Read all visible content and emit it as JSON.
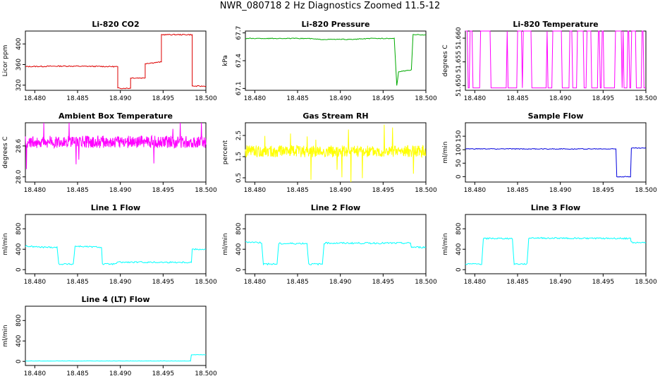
{
  "figure_title": "NWR_080718  2 Hz Diagnostics Zoomed 11.5-12",
  "chart_data": [
    {
      "id": "co2",
      "type": "line",
      "title": "Li-820 CO2",
      "ylabel": "Licor ppm",
      "xlim": [
        18.4789,
        18.5
      ],
      "ylim": [
        310,
        425
      ],
      "yticks": [
        320,
        360,
        400
      ],
      "xticks": [
        18.48,
        18.485,
        18.49,
        18.495,
        18.5
      ],
      "xticklabels": [
        "18.480",
        "18.485",
        "18.490",
        "18.495",
        "18.500"
      ],
      "color": "#dd0000",
      "noise": 1,
      "series": [
        {
          "x": 18.4789,
          "y": 356
        },
        {
          "x": 18.4835,
          "y": 357
        },
        {
          "x": 18.4897,
          "y": 356
        },
        {
          "x": 18.4897,
          "y": 314
        },
        {
          "x": 18.4912,
          "y": 314
        },
        {
          "x": 18.4912,
          "y": 334
        },
        {
          "x": 18.4929,
          "y": 334
        },
        {
          "x": 18.4929,
          "y": 362
        },
        {
          "x": 18.4948,
          "y": 365
        },
        {
          "x": 18.4948,
          "y": 418
        },
        {
          "x": 18.4984,
          "y": 418
        },
        {
          "x": 18.4984,
          "y": 318
        },
        {
          "x": 18.5,
          "y": 318
        }
      ]
    },
    {
      "id": "pressure",
      "type": "line",
      "title": "Li-820 Pressure",
      "ylabel": "kPa",
      "xlim": [
        18.4789,
        18.5
      ],
      "ylim": [
        67.08,
        67.72
      ],
      "yticks": [
        67.1,
        67.4,
        67.7
      ],
      "yticklabels": [
        "67.1",
        "67.4",
        "67.7"
      ],
      "xticks": [
        18.48,
        18.485,
        18.49,
        18.495,
        18.5
      ],
      "xticklabels": [
        "18.480",
        "18.485",
        "18.490",
        "18.495",
        "18.500"
      ],
      "color": "#00aa00",
      "noise": 0.004,
      "series": [
        {
          "x": 18.4789,
          "y": 67.64
        },
        {
          "x": 18.4862,
          "y": 67.64
        },
        {
          "x": 18.4875,
          "y": 67.63
        },
        {
          "x": 18.4915,
          "y": 67.63
        },
        {
          "x": 18.4935,
          "y": 67.64
        },
        {
          "x": 18.4963,
          "y": 67.64
        },
        {
          "x": 18.4966,
          "y": 67.13
        },
        {
          "x": 18.4968,
          "y": 67.28
        },
        {
          "x": 18.4983,
          "y": 67.3
        },
        {
          "x": 18.4985,
          "y": 67.68
        },
        {
          "x": 18.5,
          "y": 67.68
        }
      ]
    },
    {
      "id": "temperature",
      "type": "line",
      "title": "Li-820 Temperature",
      "ylabel": "degrees C",
      "xlim": [
        18.4789,
        18.5
      ],
      "ylim": [
        51.649,
        51.6615
      ],
      "yticks": [
        51.65,
        51.655,
        51.66
      ],
      "yticklabels": [
        "51.650",
        "51.655",
        "51.660"
      ],
      "xticks": [
        18.48,
        18.485,
        18.49,
        18.495,
        18.5
      ],
      "xticklabels": [
        "18.480",
        "18.485",
        "18.490",
        "18.495",
        "18.500"
      ],
      "color": "#ff00ff",
      "levels": [
        51.6495,
        51.6615
      ],
      "switch_prob": 0.22,
      "samples": 190
    },
    {
      "id": "ambient",
      "type": "line",
      "title": "Ambient Box Temperature",
      "ylabel": "degrees C",
      "xlim": [
        18.4789,
        18.5
      ],
      "ylim": [
        27.9,
        29.05
      ],
      "yticks": [
        28.0,
        28.6
      ],
      "yticklabels": [
        "28.0",
        "28.6"
      ],
      "xticks": [
        18.48,
        18.485,
        18.49,
        18.495,
        18.5
      ],
      "xticklabels": [
        "18.480",
        "18.485",
        "18.490",
        "18.495",
        "18.500"
      ],
      "color": "#ff00ff",
      "noise": 0.12,
      "samples": 520,
      "spikes": 0.02,
      "series": [
        {
          "x": 18.4789,
          "y": 28.68
        },
        {
          "x": 18.5,
          "y": 28.68
        }
      ]
    },
    {
      "id": "rh",
      "type": "line",
      "title": "Gas Stream RH",
      "ylabel": "percent",
      "xlim": [
        18.4789,
        18.5
      ],
      "ylim": [
        0.3,
        3.1
      ],
      "yticks": [
        0.5,
        1.5,
        2.5
      ],
      "yticklabels": [
        "0.5",
        "1.5",
        "2.5"
      ],
      "xticks": [
        18.48,
        18.485,
        18.49,
        18.495,
        18.5
      ],
      "xticklabels": [
        "18.480",
        "18.485",
        "18.490",
        "18.495",
        "18.500"
      ],
      "color": "#ffff00",
      "noise": 0.28,
      "samples": 520,
      "spikes": 0.03,
      "series": [
        {
          "x": 18.4789,
          "y": 1.75
        },
        {
          "x": 18.5,
          "y": 1.75
        }
      ]
    },
    {
      "id": "sample_flow",
      "type": "line",
      "title": "Sample Flow",
      "ylabel": "ml/min",
      "xlim": [
        18.4789,
        18.5
      ],
      "ylim": [
        -20,
        200
      ],
      "yticks": [
        0,
        50,
        100,
        150
      ],
      "xticks": [
        18.48,
        18.485,
        18.49,
        18.495,
        18.5
      ],
      "xticklabels": [
        "18.480",
        "18.485",
        "18.490",
        "18.495",
        "18.500"
      ],
      "color": "#0000dd",
      "noise": 1.5,
      "series": [
        {
          "x": 18.4789,
          "y": 103
        },
        {
          "x": 18.4965,
          "y": 103
        },
        {
          "x": 18.4966,
          "y": 0
        },
        {
          "x": 18.4982,
          "y": 0
        },
        {
          "x": 18.4983,
          "y": 106
        },
        {
          "x": 18.5,
          "y": 106
        }
      ]
    },
    {
      "id": "line1",
      "type": "line",
      "title": "Line 1 Flow",
      "ylabel": "ml/min",
      "xlim": [
        18.4789,
        18.5
      ],
      "ylim": [
        -80,
        1080
      ],
      "yticks": [
        0,
        400,
        800
      ],
      "xticks": [
        18.48,
        18.485,
        18.49,
        18.495,
        18.5
      ],
      "xticklabels": [
        "18.480",
        "18.485",
        "18.490",
        "18.495",
        "18.500"
      ],
      "color": "#00ffff",
      "noise": 14,
      "series": [
        {
          "x": 18.4789,
          "y": 460
        },
        {
          "x": 18.4808,
          "y": 440
        },
        {
          "x": 18.4826,
          "y": 440
        },
        {
          "x": 18.4828,
          "y": 110
        },
        {
          "x": 18.4845,
          "y": 110
        },
        {
          "x": 18.4847,
          "y": 460
        },
        {
          "x": 18.4878,
          "y": 440
        },
        {
          "x": 18.4879,
          "y": 110
        },
        {
          "x": 18.4895,
          "y": 110
        },
        {
          "x": 18.4896,
          "y": 145
        },
        {
          "x": 18.4983,
          "y": 145
        },
        {
          "x": 18.4984,
          "y": 400
        },
        {
          "x": 18.5,
          "y": 400
        }
      ]
    },
    {
      "id": "line2",
      "type": "line",
      "title": "Line 2 Flow",
      "ylabel": "ml/min",
      "xlim": [
        18.4789,
        18.5
      ],
      "ylim": [
        -80,
        1080
      ],
      "yticks": [
        0,
        400,
        800
      ],
      "xticks": [
        18.48,
        18.485,
        18.49,
        18.495,
        18.5
      ],
      "xticklabels": [
        "18.480",
        "18.485",
        "18.490",
        "18.495",
        "18.500"
      ],
      "color": "#00ffff",
      "noise": 16,
      "series": [
        {
          "x": 18.4789,
          "y": 545
        },
        {
          "x": 18.4808,
          "y": 530
        },
        {
          "x": 18.481,
          "y": 110
        },
        {
          "x": 18.4826,
          "y": 110
        },
        {
          "x": 18.4828,
          "y": 510
        },
        {
          "x": 18.4861,
          "y": 515
        },
        {
          "x": 18.4863,
          "y": 110
        },
        {
          "x": 18.4879,
          "y": 110
        },
        {
          "x": 18.4881,
          "y": 520
        },
        {
          "x": 18.4982,
          "y": 520
        },
        {
          "x": 18.4983,
          "y": 440
        },
        {
          "x": 18.5,
          "y": 440
        }
      ]
    },
    {
      "id": "line3",
      "type": "line",
      "title": "Line 3 Flow",
      "ylabel": "ml/min",
      "xlim": [
        18.4789,
        18.5
      ],
      "ylim": [
        -80,
        1080
      ],
      "yticks": [
        0,
        400,
        800
      ],
      "xticks": [
        18.48,
        18.485,
        18.49,
        18.495,
        18.5
      ],
      "xticklabels": [
        "18.480",
        "18.485",
        "18.490",
        "18.495",
        "18.500"
      ],
      "color": "#00ffff",
      "noise": 14,
      "series": [
        {
          "x": 18.4789,
          "y": 110
        },
        {
          "x": 18.4808,
          "y": 110
        },
        {
          "x": 18.481,
          "y": 610
        },
        {
          "x": 18.4844,
          "y": 610
        },
        {
          "x": 18.4846,
          "y": 110
        },
        {
          "x": 18.4861,
          "y": 110
        },
        {
          "x": 18.4863,
          "y": 620
        },
        {
          "x": 18.4982,
          "y": 610
        },
        {
          "x": 18.4983,
          "y": 530
        },
        {
          "x": 18.5,
          "y": 530
        }
      ]
    },
    {
      "id": "line4",
      "type": "line",
      "title": "Line 4 (LT) Flow",
      "ylabel": "ml/min",
      "xlim": [
        18.4789,
        18.5
      ],
      "ylim": [
        -80,
        1080
      ],
      "yticks": [
        0,
        400,
        800
      ],
      "xticks": [
        18.48,
        18.485,
        18.49,
        18.495,
        18.5
      ],
      "xticklabels": [
        "18.480",
        "18.485",
        "18.490",
        "18.495",
        "18.500"
      ],
      "color": "#00ffff",
      "noise": 3,
      "series": [
        {
          "x": 18.4789,
          "y": 8
        },
        {
          "x": 18.4982,
          "y": 8
        },
        {
          "x": 18.4983,
          "y": 130
        },
        {
          "x": 18.5,
          "y": 130
        }
      ]
    }
  ]
}
